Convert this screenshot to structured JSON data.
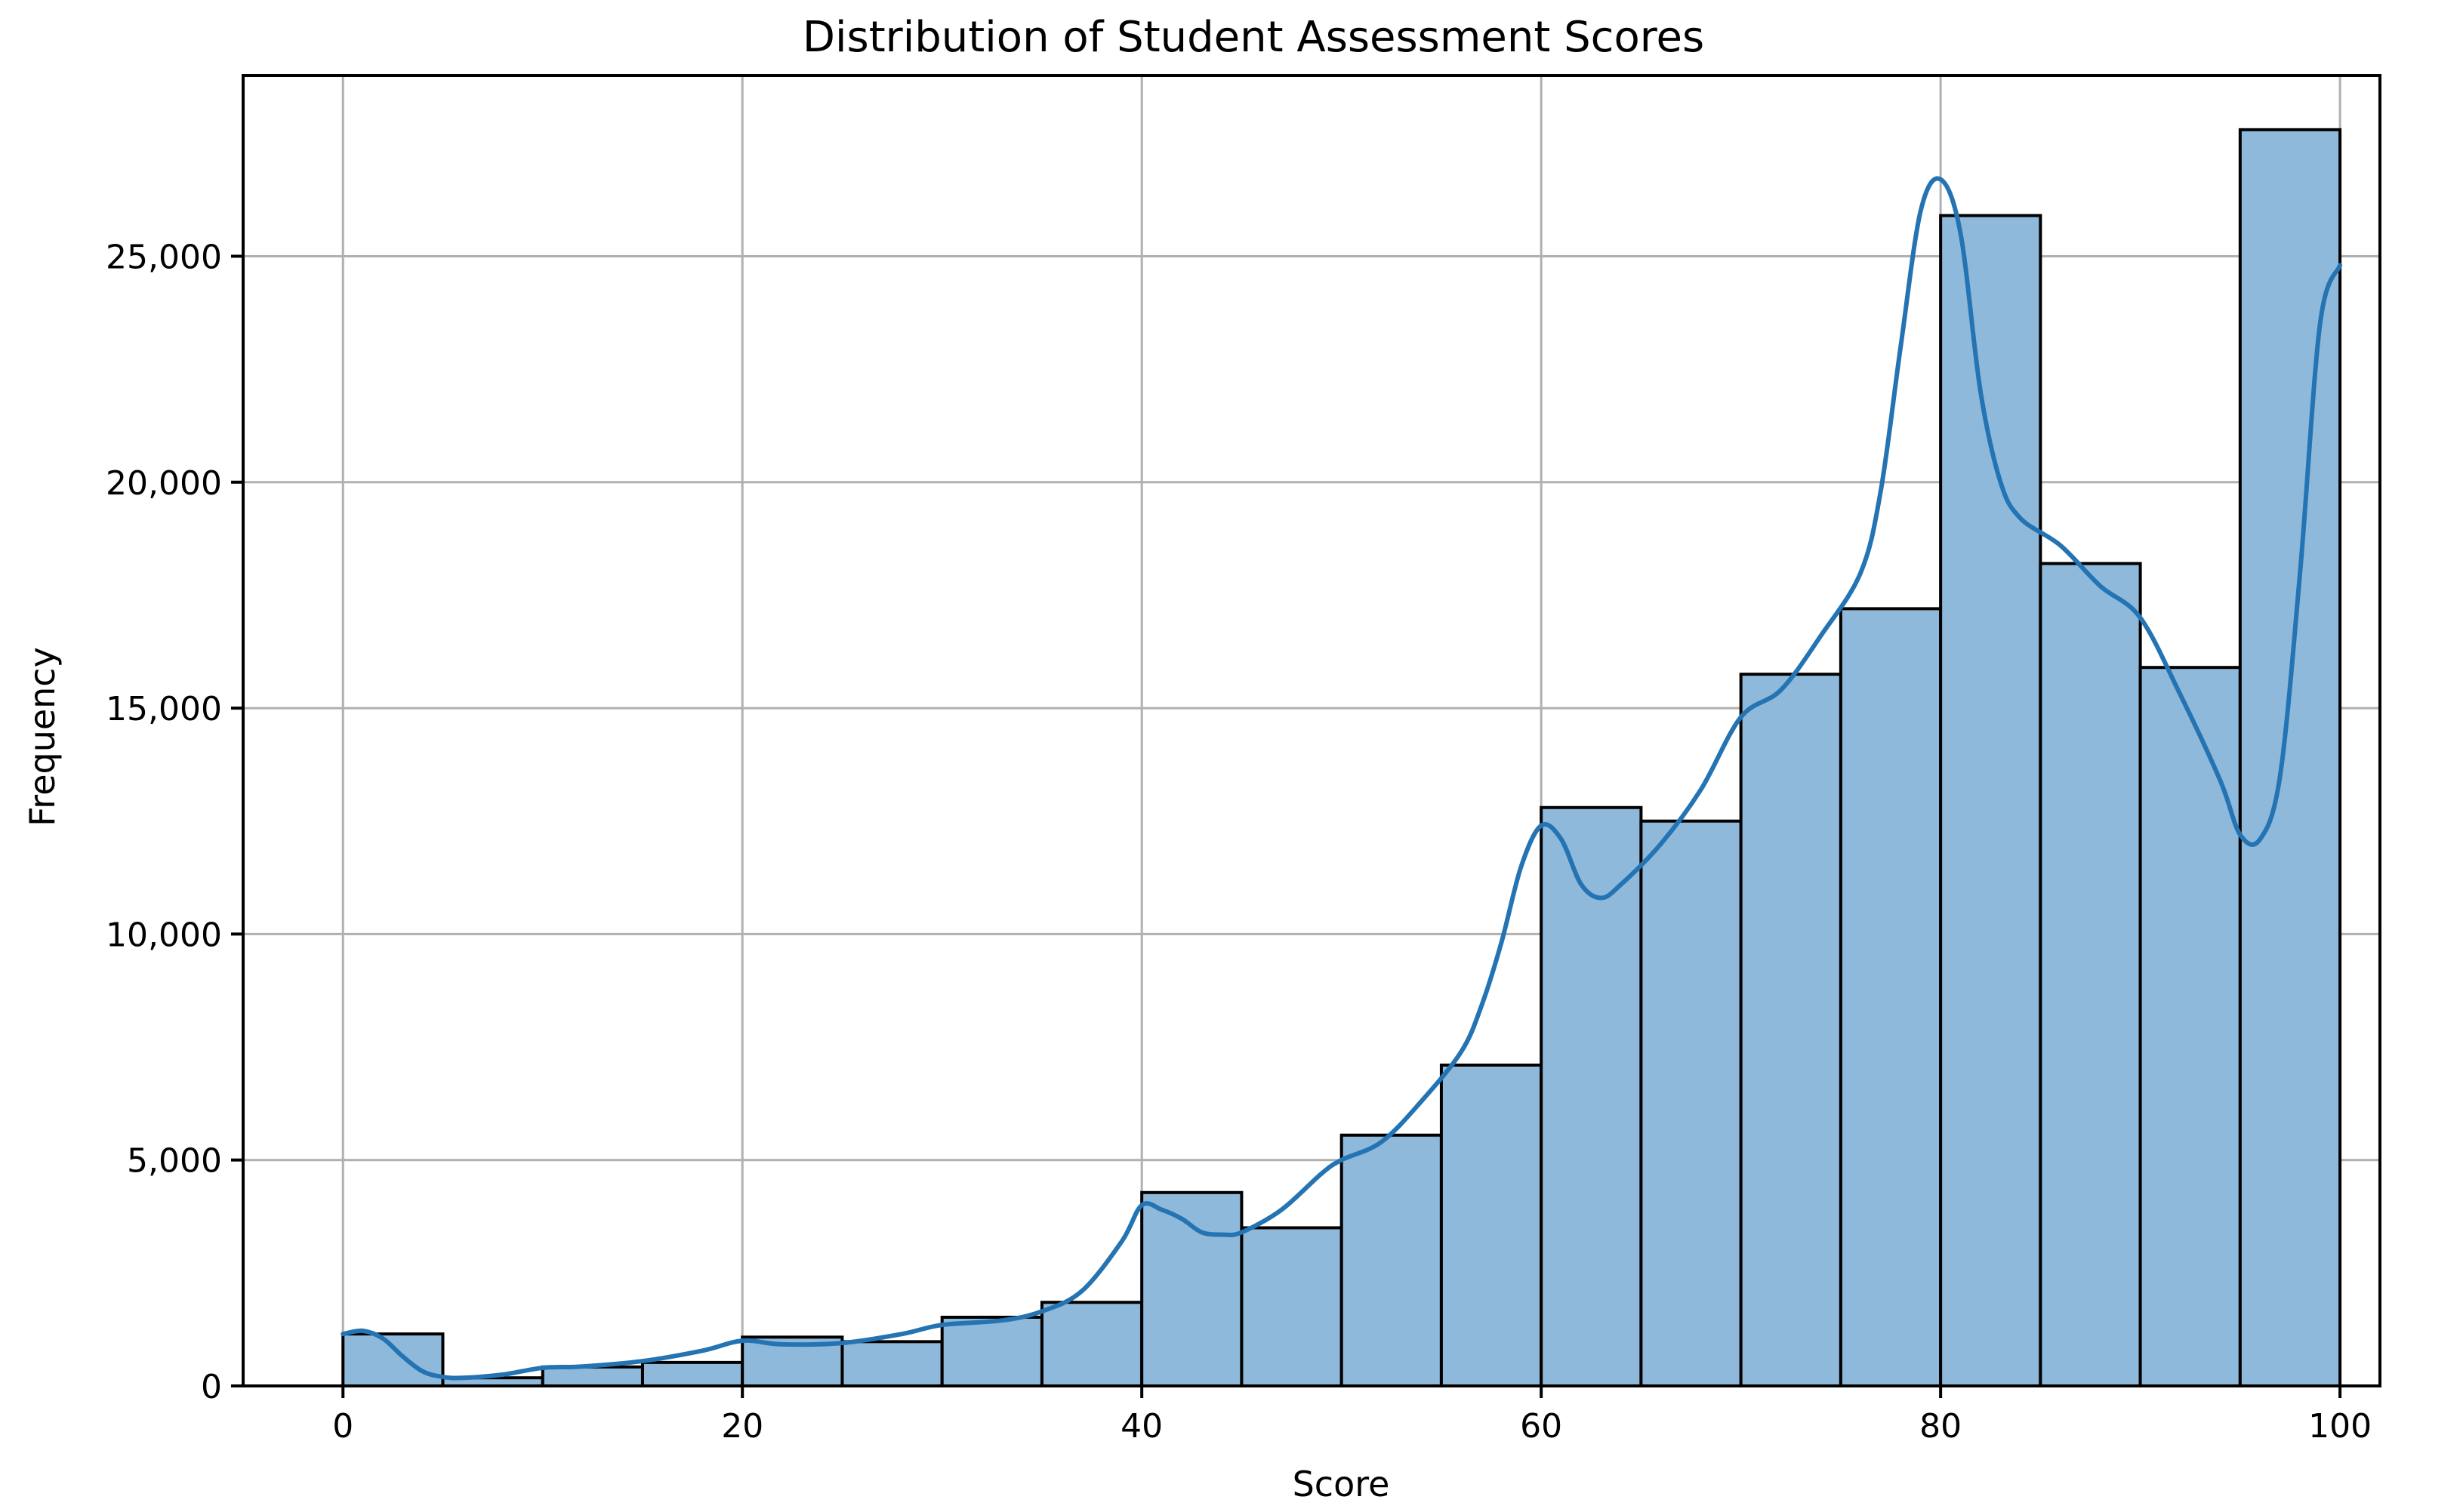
{
  "chart_data": {
    "type": "bar",
    "title": "Distribution of Student Assessment Scores",
    "xlabel": "Score",
    "ylabel": "Frequency",
    "xlim": [
      -5,
      102
    ],
    "ylim": [
      0,
      29000
    ],
    "grid": true,
    "x_ticks": [
      0,
      20,
      40,
      60,
      80,
      100
    ],
    "x_tick_labels": [
      "0",
      "20",
      "40",
      "60",
      "80",
      "100"
    ],
    "y_ticks": [
      0,
      5000,
      10000,
      15000,
      20000,
      25000
    ],
    "y_tick_labels": [
      "0",
      "5,000",
      "10,000",
      "15,000",
      "20,000",
      "25,000"
    ],
    "bin_edges": [
      0,
      5,
      10,
      15,
      20,
      25,
      30,
      35,
      40,
      45,
      50,
      55,
      60,
      65,
      70,
      75,
      80,
      85,
      90,
      95,
      100
    ],
    "values": [
      1150,
      180,
      420,
      520,
      1080,
      980,
      1520,
      1850,
      4280,
      3500,
      5550,
      7100,
      12800,
      12500,
      15750,
      17200,
      25900,
      18200,
      15900,
      27800
    ],
    "kde": {
      "name": "KDE",
      "x": [
        0,
        1,
        2,
        3,
        4,
        5,
        6,
        8,
        10,
        12,
        15,
        18,
        20,
        22,
        25,
        28,
        30,
        33,
        35,
        37,
        39,
        40,
        41,
        42,
        43,
        44,
        45,
        47,
        49,
        50,
        52,
        54,
        56,
        57,
        58,
        59,
        60,
        61,
        62,
        63,
        64,
        66,
        68,
        70,
        72,
        74,
        76,
        77,
        78,
        79,
        80,
        81,
        82,
        83,
        84,
        86,
        88,
        90,
        92,
        94,
        95,
        96,
        97,
        98,
        99,
        100
      ],
      "y": [
        1150,
        1220,
        1050,
        650,
        320,
        200,
        180,
        250,
        400,
        430,
        550,
        780,
        1000,
        920,
        950,
        1150,
        1350,
        1450,
        1650,
        2100,
        3200,
        4000,
        3900,
        3700,
        3400,
        3350,
        3400,
        3900,
        4700,
        5000,
        5400,
        6300,
        7400,
        8400,
        9800,
        11500,
        12400,
        12100,
        11100,
        10800,
        11100,
        12000,
        13200,
        14800,
        15400,
        16600,
        18000,
        19800,
        23000,
        26000,
        26700,
        25500,
        22000,
        20000,
        19200,
        18600,
        17700,
        17000,
        15300,
        13400,
        12200,
        12100,
        13500,
        18000,
        23500,
        24800
      ]
    },
    "colors": {
      "bar_fill": "#8fb9da",
      "bar_edge": "#000000",
      "kde_line": "#2474b4",
      "grid": "#b0b0b0",
      "frame": "#000000"
    }
  }
}
